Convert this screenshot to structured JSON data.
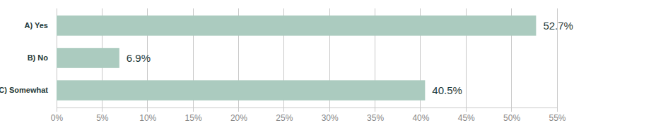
{
  "chart_data": {
    "type": "bar",
    "orientation": "horizontal",
    "categories": [
      "A) Yes",
      "B) No",
      "C) Somewhat"
    ],
    "values": [
      52.7,
      6.9,
      40.5
    ],
    "value_labels": [
      "52.7%",
      "6.9%",
      "40.5%"
    ],
    "data_labels": true,
    "color": "#abcbbf",
    "xlim": [
      0,
      55
    ],
    "xticks": [
      {
        "value": 0,
        "label": "0%"
      },
      {
        "value": 5,
        "label": "5%"
      },
      {
        "value": 10,
        "label": "10%"
      },
      {
        "value": 15,
        "label": "15%"
      },
      {
        "value": 20,
        "label": "20%"
      },
      {
        "value": 25,
        "label": "25%"
      },
      {
        "value": 30,
        "label": "30%"
      },
      {
        "value": 35,
        "label": "35%"
      },
      {
        "value": 40,
        "label": "40%"
      },
      {
        "value": 45,
        "label": "45%"
      },
      {
        "value": 50,
        "label": "50%"
      },
      {
        "value": 55,
        "label": "55%"
      }
    ],
    "grid": true
  }
}
